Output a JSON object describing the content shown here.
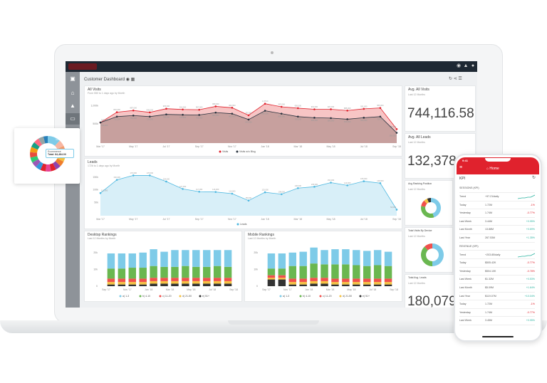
{
  "dashboard": {
    "title": "Customer Dashboard",
    "sidebar_icons": [
      "logo-icon",
      "home-icon",
      "alert-icon",
      "monitor-icon",
      "folder-icon"
    ]
  },
  "visits": {
    "title": "All Visits",
    "subtitle": "From 550 to 1 days ago by Month",
    "legend": [
      "Visits",
      "Visits w/o Blog"
    ]
  },
  "leads": {
    "title": "Leads",
    "subtitle": "1726 to 1 days ago by Month",
    "legend": [
      "Leads"
    ]
  },
  "desktop": {
    "title": "Desktop Rankings",
    "subtitle": "Last 12 Months by Month"
  },
  "mobile": {
    "title": "Mobile Rankings",
    "subtitle": "Last 12 Months by Month"
  },
  "kpis": [
    {
      "title": "Avg. All Visits",
      "subtitle": "Last 12 Months",
      "value": "744,116.58"
    },
    {
      "title": "Avg. All Leads",
      "subtitle": "Last 12 Months",
      "value": "132,378"
    },
    {
      "title": "Avg Ranking Position",
      "subtitle": "Last 12 Months"
    },
    {
      "title": "Total Visits By Device",
      "subtitle": "Last 12 Months"
    },
    {
      "title": "Total Avg. Leads",
      "subtitle": "Last 12 Months",
      "value": "180,079"
    }
  ],
  "popup": {
    "label": "Ecommerce",
    "total": "Total: 84,484.00",
    "pct": "12 %"
  },
  "phone": {
    "time": "9:41",
    "header": "Home",
    "kpi_title": "KPI",
    "sections": [
      {
        "title": "SESSIONS (KPI)",
        "rows": [
          [
            "Trend",
            "+97.21/daily",
            ""
          ],
          [
            "Today",
            "1.72M",
            "-1%"
          ],
          [
            "Yesterday",
            "1.74M",
            "-0.77%"
          ],
          [
            "Last Week",
            "3.44M",
            "+0.95%"
          ],
          [
            "Last Month",
            "13.88M",
            "+0.69%"
          ],
          [
            "Last Year",
            "267.53M",
            "+1.35%"
          ]
        ]
      },
      {
        "title": "REVENUE (KPI)",
        "rows": [
          [
            "Trend",
            "+203.85/daily",
            ""
          ],
          [
            "Today",
            "$505.42K",
            "-0.77%"
          ],
          [
            "Yesterday",
            "$504.10K",
            "-0.78%"
          ],
          [
            "Last Week",
            "$1.32M",
            "+0.53%"
          ],
          [
            "Last Month",
            "$5.09M",
            "+1.64%"
          ],
          [
            "Last Year",
            "$119.07M",
            "+10.04%"
          ],
          [
            "Today",
            "1.72M",
            "-1%"
          ],
          [
            "Yesterday",
            "1.74M",
            "-0.77%"
          ],
          [
            "Last Week",
            "3.45M",
            "+0.95%"
          ]
        ]
      }
    ]
  },
  "colors": {
    "red": "#e0222d",
    "blue": "#7ecbe8",
    "green": "#6ab750",
    "yellow": "#f5c243",
    "dark": "#333",
    "topbar": "#1e2833"
  },
  "chart_data": [
    {
      "type": "area",
      "title": "All Visits",
      "x": [
        "Mar '17",
        "Apr '17",
        "May '17",
        "Jun '17",
        "Jul '17",
        "Aug '17",
        "Sep '17",
        "Oct '17",
        "Nov '17",
        "Dec '17",
        "Jan '18",
        "Feb '18",
        "Mar '18",
        "Apr '18",
        "May '18",
        "Jun '18",
        "Jul '18",
        "Aug '18",
        "Sep '18"
      ],
      "xticks": [
        "Mar '17",
        "May '17",
        "Jul '17",
        "Sep '17",
        "Nov '17",
        "Jan '18",
        "Mar '18",
        "May '18",
        "Jul '18",
        "Sep '18"
      ],
      "yticks": [
        "500k",
        "1,000k"
      ],
      "ylim": [
        0,
        1200
      ],
      "series": [
        {
          "name": "Visits",
          "values": [
            560,
            840,
            887,
            836,
            935,
            914,
            907,
            998,
            962,
            757,
            1070,
            987,
            950,
            919,
            920,
            885,
            931,
            955,
            380
          ]
        },
        {
          "name": "Visits w/o Blog",
          "values": [
            560,
            720,
            750,
            720,
            780,
            770,
            765,
            830,
            800,
            640,
            880,
            800,
            720,
            690,
            680,
            650,
            690,
            720,
            280
          ]
        }
      ]
    },
    {
      "type": "area",
      "title": "Leads",
      "x": [
        "Mar '17",
        "Apr '17",
        "May '17",
        "Jun '17",
        "Jul '17",
        "Aug '17",
        "Sep '17",
        "Oct '17",
        "Nov '17",
        "Dec '17",
        "Jan '18",
        "Feb '18",
        "Mar '18",
        "Apr '18",
        "May '18",
        "Jun '18",
        "Jul '18",
        "Aug '18",
        "Sep '18"
      ],
      "xticks": [
        "Mar '17",
        "May '17",
        "Jul '17",
        "Sep '17",
        "Nov '17",
        "Jan '18",
        "Mar '18",
        "May '18",
        "Jul '18",
        "Sep '18"
      ],
      "yticks": [
        "50k",
        "100k",
        "150k"
      ],
      "ylim": [
        30,
        190
      ],
      "series": [
        {
          "name": "Leads",
          "values": [
            112,
            160,
            176,
            176,
            154,
            127,
            117,
            116,
            110,
            85,
            115,
            108,
            130,
            135,
            150,
            140,
            155,
            148,
            52
          ]
        }
      ]
    },
    {
      "type": "bar",
      "title": "Desktop Rankings",
      "categories": [
        "Oct '17",
        "Nov '17",
        "Dec '17",
        "Jan '18",
        "Feb '18",
        "Mar '18",
        "Apr '18",
        "May '18",
        "Jun '18",
        "Jul '18",
        "Aug '18",
        "Sep '18"
      ],
      "xticks": [
        "Sep '17",
        "Nov '17",
        "Jan '18",
        "Mar '18",
        "May '18",
        "Jul '18",
        "Sep '18"
      ],
      "yticks": [
        "0",
        "10k",
        "20k"
      ],
      "ylim": [
        0,
        25
      ],
      "series": [
        {
          "name": "e) 51+",
          "values": [
            1,
            1,
            1,
            1,
            1.5,
            1.5,
            1.5,
            1.5,
            1.5,
            1.5,
            1.5,
            1.5
          ]
        },
        {
          "name": "d) 21-50",
          "values": [
            1.5,
            1.5,
            1.5,
            1.5,
            1.5,
            1.5,
            1.5,
            1.5,
            1.5,
            1.5,
            1.5,
            1.5
          ]
        },
        {
          "name": "c) 11-20",
          "values": [
            2,
            2,
            2,
            2,
            2,
            2,
            2,
            2,
            2,
            2,
            2,
            2
          ]
        },
        {
          "name": "b) 4-10",
          "values": [
            6,
            6,
            6.5,
            6.5,
            7,
            6.5,
            6.5,
            7,
            6.5,
            6.5,
            7,
            6.5
          ]
        },
        {
          "name": "a) 1-3",
          "values": [
            9,
            9,
            8.5,
            9,
            10,
            9,
            10,
            9.5,
            10,
            10,
            9.5,
            10
          ]
        }
      ]
    },
    {
      "type": "bar",
      "title": "Mobile Rankings",
      "categories": [
        "Oct '17",
        "Nov '17",
        "Dec '17",
        "Jan '18",
        "Feb '18",
        "Mar '18",
        "Apr '18",
        "May '18",
        "Jun '18",
        "Jul '18",
        "Aug '18",
        "Sep '18"
      ],
      "xticks": [
        "Sep '17",
        "Nov '17",
        "Jan '18",
        "Mar '18",
        "May '18",
        "Jul '18",
        "Sep '18"
      ],
      "yticks": [
        "0",
        "10k",
        "20k"
      ],
      "ylim": [
        0,
        25
      ],
      "series": [
        {
          "name": "e) 51+",
          "values": [
            4,
            4,
            1,
            1,
            1.5,
            1.5,
            1,
            1,
            1,
            1,
            1,
            1
          ]
        },
        {
          "name": "d) 21-50",
          "values": [
            1,
            1,
            1.5,
            1.5,
            1.5,
            1.5,
            1.5,
            1.5,
            1.5,
            1.5,
            1.5,
            1.5
          ]
        },
        {
          "name": "c) 11-20",
          "values": [
            1.5,
            1.5,
            2,
            2,
            2,
            2,
            2,
            2,
            2,
            2,
            2,
            2
          ]
        },
        {
          "name": "b) 4-10",
          "values": [
            4,
            4,
            7.5,
            7.5,
            8.5,
            8,
            8.5,
            8.5,
            8,
            7.5,
            8,
            7.5
          ]
        },
        {
          "name": "a) 1-3",
          "values": [
            9,
            9,
            8,
            8.5,
            9.5,
            8.5,
            9,
            9,
            9,
            9,
            9,
            8.5
          ]
        }
      ]
    },
    {
      "type": "pie",
      "title": "Avg Ranking Position",
      "labels": [
        "a) 1-3",
        "b) 4-10",
        "c) 11-20",
        "d) 21-50",
        "e) 51+"
      ],
      "values": [
        45,
        33,
        10,
        6,
        6
      ]
    },
    {
      "type": "pie",
      "title": "Total Visits By Device",
      "labels": [
        "Desktop",
        "Mobile",
        "Tablet"
      ],
      "values": [
        50,
        38,
        12
      ]
    }
  ]
}
